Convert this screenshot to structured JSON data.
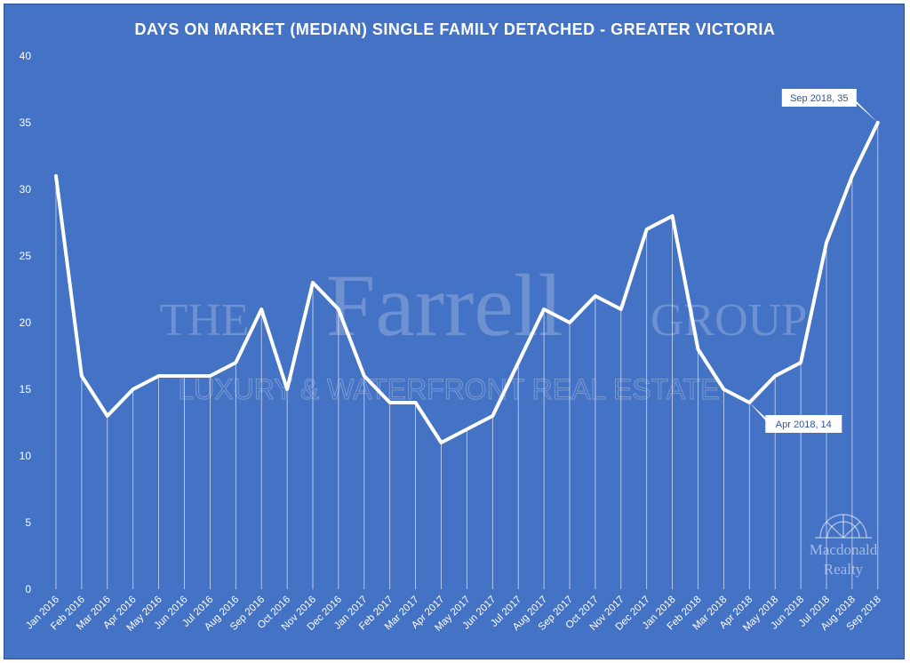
{
  "chart_data": {
    "type": "line",
    "title": "DAYS ON MARKET (MEDIAN) SINGLE FAMILY DETACHED - GREATER VICTORIA",
    "xlabel": "",
    "ylabel": "",
    "ylim": [
      0,
      40
    ],
    "yticks": [
      0,
      5,
      10,
      15,
      20,
      25,
      30,
      35,
      40
    ],
    "grid": "vertical drop lines",
    "categories": [
      "Jan 2016",
      "Feb 2016",
      "Mar 2016",
      "Apr 2016",
      "May 2016",
      "Jun 2016",
      "Jul 2016",
      "Aug 2016",
      "Sep 2016",
      "Oct 2016",
      "Nov 2016",
      "Dec 2016",
      "Jan 2017",
      "Feb 2017",
      "Mar 2017",
      "Apr 2017",
      "May 2017",
      "Jun 2017",
      "Jul 2017",
      "Aug 2017",
      "Sep 2017",
      "Oct 2017",
      "Nov 2017",
      "Dec 2017",
      "Jan 2018",
      "Feb 2018",
      "Mar 2018",
      "Apr 2018",
      "May 2018",
      "Jun 2018",
      "Jul 2018",
      "Aug 2018",
      "Sep 2018"
    ],
    "values": [
      31,
      16,
      13,
      15,
      16,
      16,
      16,
      17,
      21,
      15,
      23,
      21,
      16,
      14,
      14,
      11,
      12,
      13,
      17,
      21,
      20,
      22,
      21,
      27,
      28,
      18,
      15,
      14,
      16,
      17,
      26,
      31,
      35
    ],
    "annotations": [
      {
        "category": "Sep 2018",
        "value": 35,
        "text": "Sep 2018, 35"
      },
      {
        "category": "Apr 2018",
        "value": 14,
        "text": "Apr 2018, 14"
      }
    ],
    "colors": {
      "background": "#4472c4",
      "line": "#ffffff"
    }
  },
  "watermark": {
    "the": "THE",
    "name": "Farrell",
    "group": "GROUP",
    "tagline": "LUXURY & WATERFRONT REAL ESTATE"
  },
  "logo": {
    "line1": "Macdonald",
    "line2": "Realty"
  }
}
